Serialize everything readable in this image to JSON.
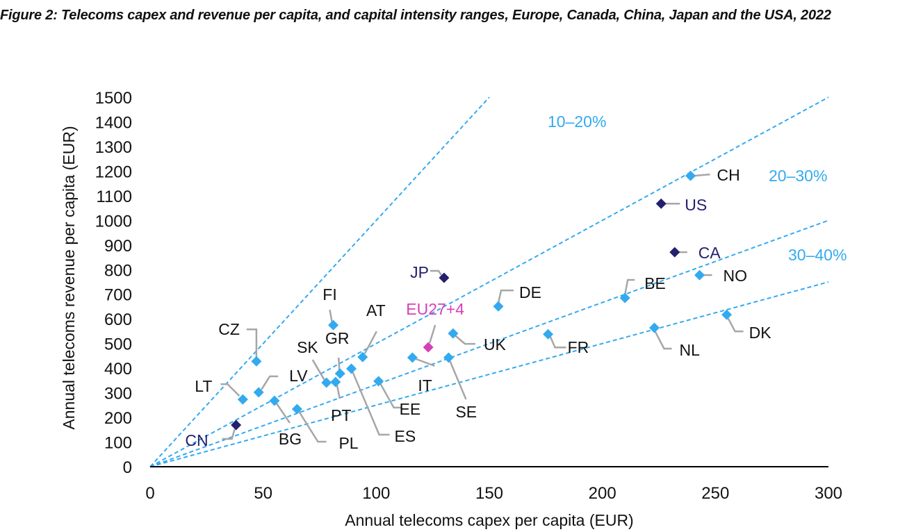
{
  "chart_data": {
    "type": "scatter",
    "title": "Figure 2: Telecoms capex and revenue per capita, and capital intensity ranges, Europe, Canada, China, Japan and the USA, 2022",
    "xlabel": "Annual telecoms capex per capita (EUR)",
    "ylabel": "Annual telecoms revenue per capita (EUR)",
    "xlim": [
      0,
      300
    ],
    "ylim": [
      0,
      1500
    ],
    "xticks": [
      "0",
      "50",
      "100",
      "150",
      "200",
      "250",
      "300"
    ],
    "yticks": [
      "0",
      "100",
      "200",
      "300",
      "400",
      "500",
      "600",
      "700",
      "800",
      "900",
      "1000",
      "1100",
      "1200",
      "1300",
      "1400",
      "1500"
    ],
    "grid": false,
    "colors": {
      "europe": "#33aaf0",
      "non_europe": "#24206e",
      "eu_aggregate": "#d63fb8",
      "range_line": "#33aaf0",
      "leader": "#a6a6a6"
    },
    "intensity_lines": [
      {
        "ratio": 0.1,
        "end": [
          150,
          1500
        ]
      },
      {
        "ratio": 0.2,
        "end": [
          300,
          1500
        ]
      },
      {
        "ratio": 0.3,
        "end": [
          300,
          1000
        ]
      },
      {
        "ratio": 0.4,
        "end": [
          300,
          750
        ]
      }
    ],
    "range_labels": [
      {
        "text": "10–20%"
      },
      {
        "text": "20–30%"
      },
      {
        "text": "30–40%"
      }
    ],
    "points": [
      {
        "label": "CZ",
        "x": 47,
        "y": 428,
        "group": "europe"
      },
      {
        "label": "LT",
        "x": 41,
        "y": 273,
        "group": "europe"
      },
      {
        "label": "LV",
        "x": 48,
        "y": 302,
        "group": "europe"
      },
      {
        "label": "CN",
        "x": 38,
        "y": 169,
        "group": "non_europe"
      },
      {
        "label": "BG",
        "x": 55,
        "y": 268,
        "group": "europe"
      },
      {
        "label": "PL",
        "x": 65,
        "y": 234,
        "group": "europe"
      },
      {
        "label": "FI",
        "x": 81,
        "y": 575,
        "group": "europe"
      },
      {
        "label": "SK",
        "x": 78,
        "y": 341,
        "group": "europe"
      },
      {
        "label": "PT",
        "x": 82,
        "y": 344,
        "group": "europe"
      },
      {
        "label": "GR",
        "x": 84,
        "y": 378,
        "group": "europe"
      },
      {
        "label": "ES",
        "x": 89,
        "y": 398,
        "group": "europe"
      },
      {
        "label": "AT",
        "x": 94,
        "y": 445,
        "group": "europe"
      },
      {
        "label": "EE",
        "x": 101,
        "y": 347,
        "group": "europe"
      },
      {
        "label": "IT",
        "x": 116,
        "y": 443,
        "group": "europe"
      },
      {
        "label": "EU27+4",
        "x": 123,
        "y": 485,
        "group": "eu_aggregate"
      },
      {
        "label": "SE",
        "x": 132,
        "y": 443,
        "group": "europe"
      },
      {
        "label": "UK",
        "x": 134,
        "y": 541,
        "group": "europe"
      },
      {
        "label": "JP",
        "x": 130,
        "y": 767,
        "group": "non_europe"
      },
      {
        "label": "DE",
        "x": 154,
        "y": 651,
        "group": "europe"
      },
      {
        "label": "FR",
        "x": 176,
        "y": 538,
        "group": "europe"
      },
      {
        "label": "BE",
        "x": 210,
        "y": 685,
        "group": "europe"
      },
      {
        "label": "NL",
        "x": 223,
        "y": 564,
        "group": "europe"
      },
      {
        "label": "DK",
        "x": 255,
        "y": 617,
        "group": "europe"
      },
      {
        "label": "CH",
        "x": 239,
        "y": 1181,
        "group": "europe"
      },
      {
        "label": "US",
        "x": 226,
        "y": 1068,
        "group": "non_europe"
      },
      {
        "label": "CA",
        "x": 232,
        "y": 871,
        "group": "non_europe"
      },
      {
        "label": "NO",
        "x": 243,
        "y": 778,
        "group": "europe"
      }
    ]
  }
}
